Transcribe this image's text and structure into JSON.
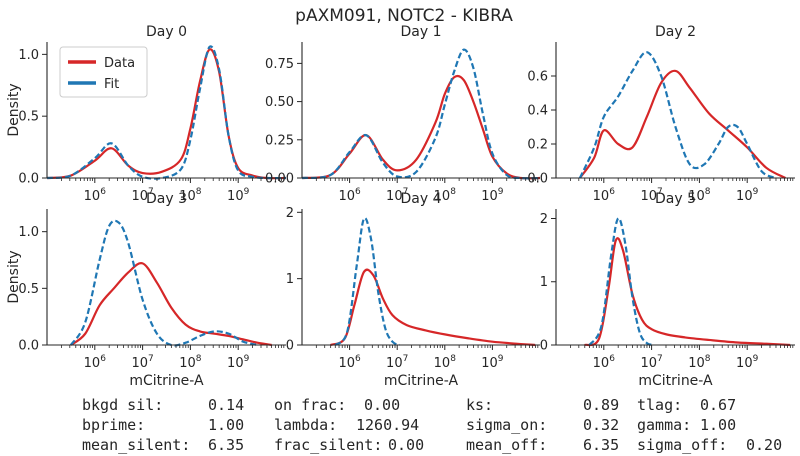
{
  "figure": {
    "title": "pAXM091, NOTC2 - KIBRA"
  },
  "legend": {
    "items": [
      {
        "label": "Data",
        "color": "#d62728"
      },
      {
        "label": "Fit",
        "color": "#1f77b4"
      }
    ]
  },
  "chart_data": [
    {
      "type": "line",
      "title": "Day 0",
      "ylabel": "Density",
      "xlabel": "",
      "xscale": "log",
      "xlim": [
        100000.0,
        10000000000.0
      ],
      "ylim": [
        0,
        1.1
      ],
      "yticks": [
        "0.0",
        "0.5",
        "1.0"
      ],
      "xticks": [
        "10^6",
        "10^7",
        "10^8",
        "10^9"
      ],
      "legend": "top-left",
      "series": [
        {
          "name": "Data",
          "style": "solid",
          "color": "#d62728",
          "x": [
            5.0,
            5.5,
            6.0,
            6.35,
            6.7,
            7.0,
            7.4,
            7.8,
            8.0,
            8.2,
            8.4,
            8.6,
            8.8,
            9.0,
            9.3,
            9.6,
            10.0
          ],
          "y": [
            0.0,
            0.02,
            0.14,
            0.24,
            0.1,
            0.04,
            0.05,
            0.15,
            0.4,
            0.78,
            1.04,
            0.86,
            0.34,
            0.08,
            0.02,
            0.0,
            0.0
          ]
        },
        {
          "name": "Fit",
          "style": "dashed",
          "color": "#1f77b4",
          "x": [
            5.0,
            5.5,
            6.0,
            6.35,
            6.7,
            7.0,
            7.4,
            7.8,
            8.0,
            8.2,
            8.4,
            8.6,
            8.8,
            9.0,
            9.3,
            9.6,
            10.0
          ],
          "y": [
            0.0,
            0.02,
            0.16,
            0.28,
            0.1,
            0.01,
            0.0,
            0.07,
            0.31,
            0.72,
            1.06,
            0.88,
            0.34,
            0.06,
            0.01,
            0.0,
            0.0
          ]
        }
      ]
    },
    {
      "type": "line",
      "title": "Day 1",
      "ylabel": "",
      "xlabel": "",
      "xscale": "log",
      "xlim": [
        100000.0,
        10000000000.0
      ],
      "ylim": [
        0,
        0.89
      ],
      "yticks": [
        "0.00",
        "0.25",
        "0.50",
        "0.75"
      ],
      "xticks": [
        "10^6",
        "10^7",
        "10^8",
        "10^9"
      ],
      "series": [
        {
          "name": "Data",
          "style": "solid",
          "color": "#d62728",
          "x": [
            5.0,
            5.6,
            6.0,
            6.35,
            6.7,
            7.0,
            7.4,
            7.8,
            8.0,
            8.2,
            8.4,
            8.6,
            8.8,
            9.0,
            9.3,
            9.6,
            10.0
          ],
          "y": [
            0.0,
            0.02,
            0.16,
            0.28,
            0.12,
            0.05,
            0.12,
            0.36,
            0.55,
            0.66,
            0.64,
            0.5,
            0.32,
            0.14,
            0.03,
            0.0,
            0.0
          ]
        },
        {
          "name": "Fit",
          "style": "dashed",
          "color": "#1f77b4",
          "x": [
            5.0,
            5.6,
            6.0,
            6.35,
            6.7,
            7.0,
            7.4,
            7.8,
            8.0,
            8.2,
            8.4,
            8.6,
            8.8,
            9.0,
            9.3,
            9.6,
            10.0
          ],
          "y": [
            0.0,
            0.02,
            0.17,
            0.28,
            0.1,
            0.01,
            0.04,
            0.26,
            0.48,
            0.7,
            0.84,
            0.72,
            0.42,
            0.16,
            0.02,
            0.0,
            0.0
          ]
        }
      ]
    },
    {
      "type": "line",
      "title": "Day 2",
      "ylabel": "",
      "xlabel": "",
      "xscale": "log",
      "xlim": [
        100000.0,
        10000000000.0
      ],
      "ylim": [
        0,
        0.8
      ],
      "yticks": [
        "0.0",
        "0.2",
        "0.4",
        "0.6"
      ],
      "xticks": [
        "10^6",
        "10^7",
        "10^8",
        "10^9"
      ],
      "series": [
        {
          "name": "Data",
          "style": "solid",
          "color": "#d62728",
          "x": [
            5.5,
            5.8,
            6.0,
            6.3,
            6.6,
            6.9,
            7.2,
            7.5,
            7.8,
            8.2,
            8.6,
            9.0,
            9.4,
            9.8
          ],
          "y": [
            0.0,
            0.12,
            0.28,
            0.2,
            0.18,
            0.36,
            0.56,
            0.63,
            0.53,
            0.38,
            0.28,
            0.18,
            0.06,
            0.0
          ]
        },
        {
          "name": "Fit",
          "style": "dashed",
          "color": "#1f77b4",
          "x": [
            5.5,
            5.8,
            6.0,
            6.3,
            6.6,
            6.9,
            7.2,
            7.5,
            7.8,
            8.1,
            8.4,
            8.6,
            8.8,
            9.0,
            9.3,
            9.6
          ],
          "y": [
            0.0,
            0.18,
            0.36,
            0.48,
            0.63,
            0.74,
            0.6,
            0.3,
            0.08,
            0.08,
            0.2,
            0.3,
            0.3,
            0.2,
            0.04,
            0.0
          ]
        }
      ]
    },
    {
      "type": "line",
      "title": "Day 3",
      "ylabel": "Density",
      "xlabel": "mCitrine-A",
      "xscale": "log",
      "xlim": [
        100000.0,
        10000000000.0
      ],
      "ylim": [
        0,
        1.2
      ],
      "yticks": [
        "0.0",
        "0.5",
        "1.0"
      ],
      "xticks": [
        "10^6",
        "10^7",
        "10^8",
        "10^9"
      ],
      "series": [
        {
          "name": "Data",
          "style": "solid",
          "color": "#d62728",
          "x": [
            5.5,
            5.8,
            6.1,
            6.4,
            6.7,
            7.0,
            7.3,
            7.6,
            7.9,
            8.2,
            8.5,
            8.8,
            9.1,
            9.4,
            9.7
          ],
          "y": [
            0.0,
            0.1,
            0.35,
            0.5,
            0.64,
            0.72,
            0.55,
            0.33,
            0.18,
            0.12,
            0.1,
            0.08,
            0.05,
            0.02,
            0.0
          ]
        },
        {
          "name": "Fit",
          "style": "dashed",
          "color": "#1f77b4",
          "x": [
            5.5,
            5.8,
            6.1,
            6.3,
            6.5,
            6.7,
            7.0,
            7.3,
            7.6,
            7.9,
            8.2,
            8.5,
            8.8,
            9.1,
            9.4
          ],
          "y": [
            0.0,
            0.2,
            0.75,
            1.05,
            1.08,
            0.9,
            0.4,
            0.1,
            0.0,
            0.02,
            0.08,
            0.12,
            0.1,
            0.03,
            0.0
          ]
        }
      ]
    },
    {
      "type": "line",
      "title": "Day 4",
      "ylabel": "",
      "xlabel": "mCitrine-A",
      "xscale": "log",
      "xlim": [
        100000.0,
        10000000000.0
      ],
      "ylim": [
        0,
        2.05
      ],
      "yticks": [
        "0",
        "1",
        "2"
      ],
      "xticks": [
        "10^6",
        "10^7",
        "10^8",
        "10^9"
      ],
      "series": [
        {
          "name": "Data",
          "style": "solid",
          "color": "#d62728",
          "x": [
            5.6,
            5.9,
            6.1,
            6.3,
            6.5,
            6.7,
            6.9,
            7.2,
            7.6,
            8.0,
            8.5,
            9.0,
            9.5,
            9.9
          ],
          "y": [
            0.0,
            0.1,
            0.6,
            1.1,
            1.05,
            0.7,
            0.45,
            0.3,
            0.22,
            0.16,
            0.1,
            0.05,
            0.02,
            0.0
          ]
        },
        {
          "name": "Fit",
          "style": "dashed",
          "color": "#1f77b4",
          "x": [
            5.7,
            5.95,
            6.15,
            6.3,
            6.45,
            6.6,
            6.75,
            6.9,
            7.05
          ],
          "y": [
            0.0,
            0.2,
            1.2,
            1.9,
            1.6,
            0.8,
            0.25,
            0.05,
            0.0
          ]
        }
      ]
    },
    {
      "type": "line",
      "title": "Day 5",
      "ylabel": "",
      "xlabel": "mCitrine-A",
      "xscale": "log",
      "xlim": [
        100000.0,
        10000000000.0
      ],
      "ylim": [
        0,
        2.15
      ],
      "yticks": [
        "0",
        "1",
        "2"
      ],
      "xticks": [
        "10^6",
        "10^7",
        "10^8",
        "10^9"
      ],
      "series": [
        {
          "name": "Data",
          "style": "solid",
          "color": "#d62728",
          "x": [
            5.6,
            5.9,
            6.1,
            6.25,
            6.4,
            6.6,
            6.8,
            7.0,
            7.3,
            7.7,
            8.2,
            8.8,
            9.4,
            9.9
          ],
          "y": [
            0.0,
            0.1,
            0.9,
            1.65,
            1.5,
            0.8,
            0.4,
            0.25,
            0.17,
            0.12,
            0.08,
            0.04,
            0.02,
            0.0
          ]
        },
        {
          "name": "Fit",
          "style": "dashed",
          "color": "#1f77b4",
          "x": [
            5.7,
            5.95,
            6.15,
            6.3,
            6.45,
            6.6,
            6.75,
            6.9,
            7.05
          ],
          "y": [
            0.0,
            0.3,
            1.4,
            2.0,
            1.6,
            0.75,
            0.2,
            0.03,
            0.0
          ]
        }
      ]
    }
  ],
  "stats": [
    {
      "label": "bkgd sil:",
      "value": "0.14"
    },
    {
      "label": "on frac:",
      "value": "0.00"
    },
    {
      "label": "ks:",
      "value": "0.89"
    },
    {
      "label": "tlag:",
      "value": "0.67"
    },
    {
      "label": "bprime:",
      "value": "1.00"
    },
    {
      "label": "lambda:",
      "value": "1260.94"
    },
    {
      "label": "sigma_on:",
      "value": "0.32"
    },
    {
      "label": "gamma:",
      "value": "1.00"
    },
    {
      "label": "mean_silent:",
      "value": "6.35"
    },
    {
      "label": "frac_silent:",
      "value": "0.00"
    },
    {
      "label": "mean_off:",
      "value": "6.35"
    },
    {
      "label": "sigma_off:",
      "value": "0.20"
    }
  ]
}
